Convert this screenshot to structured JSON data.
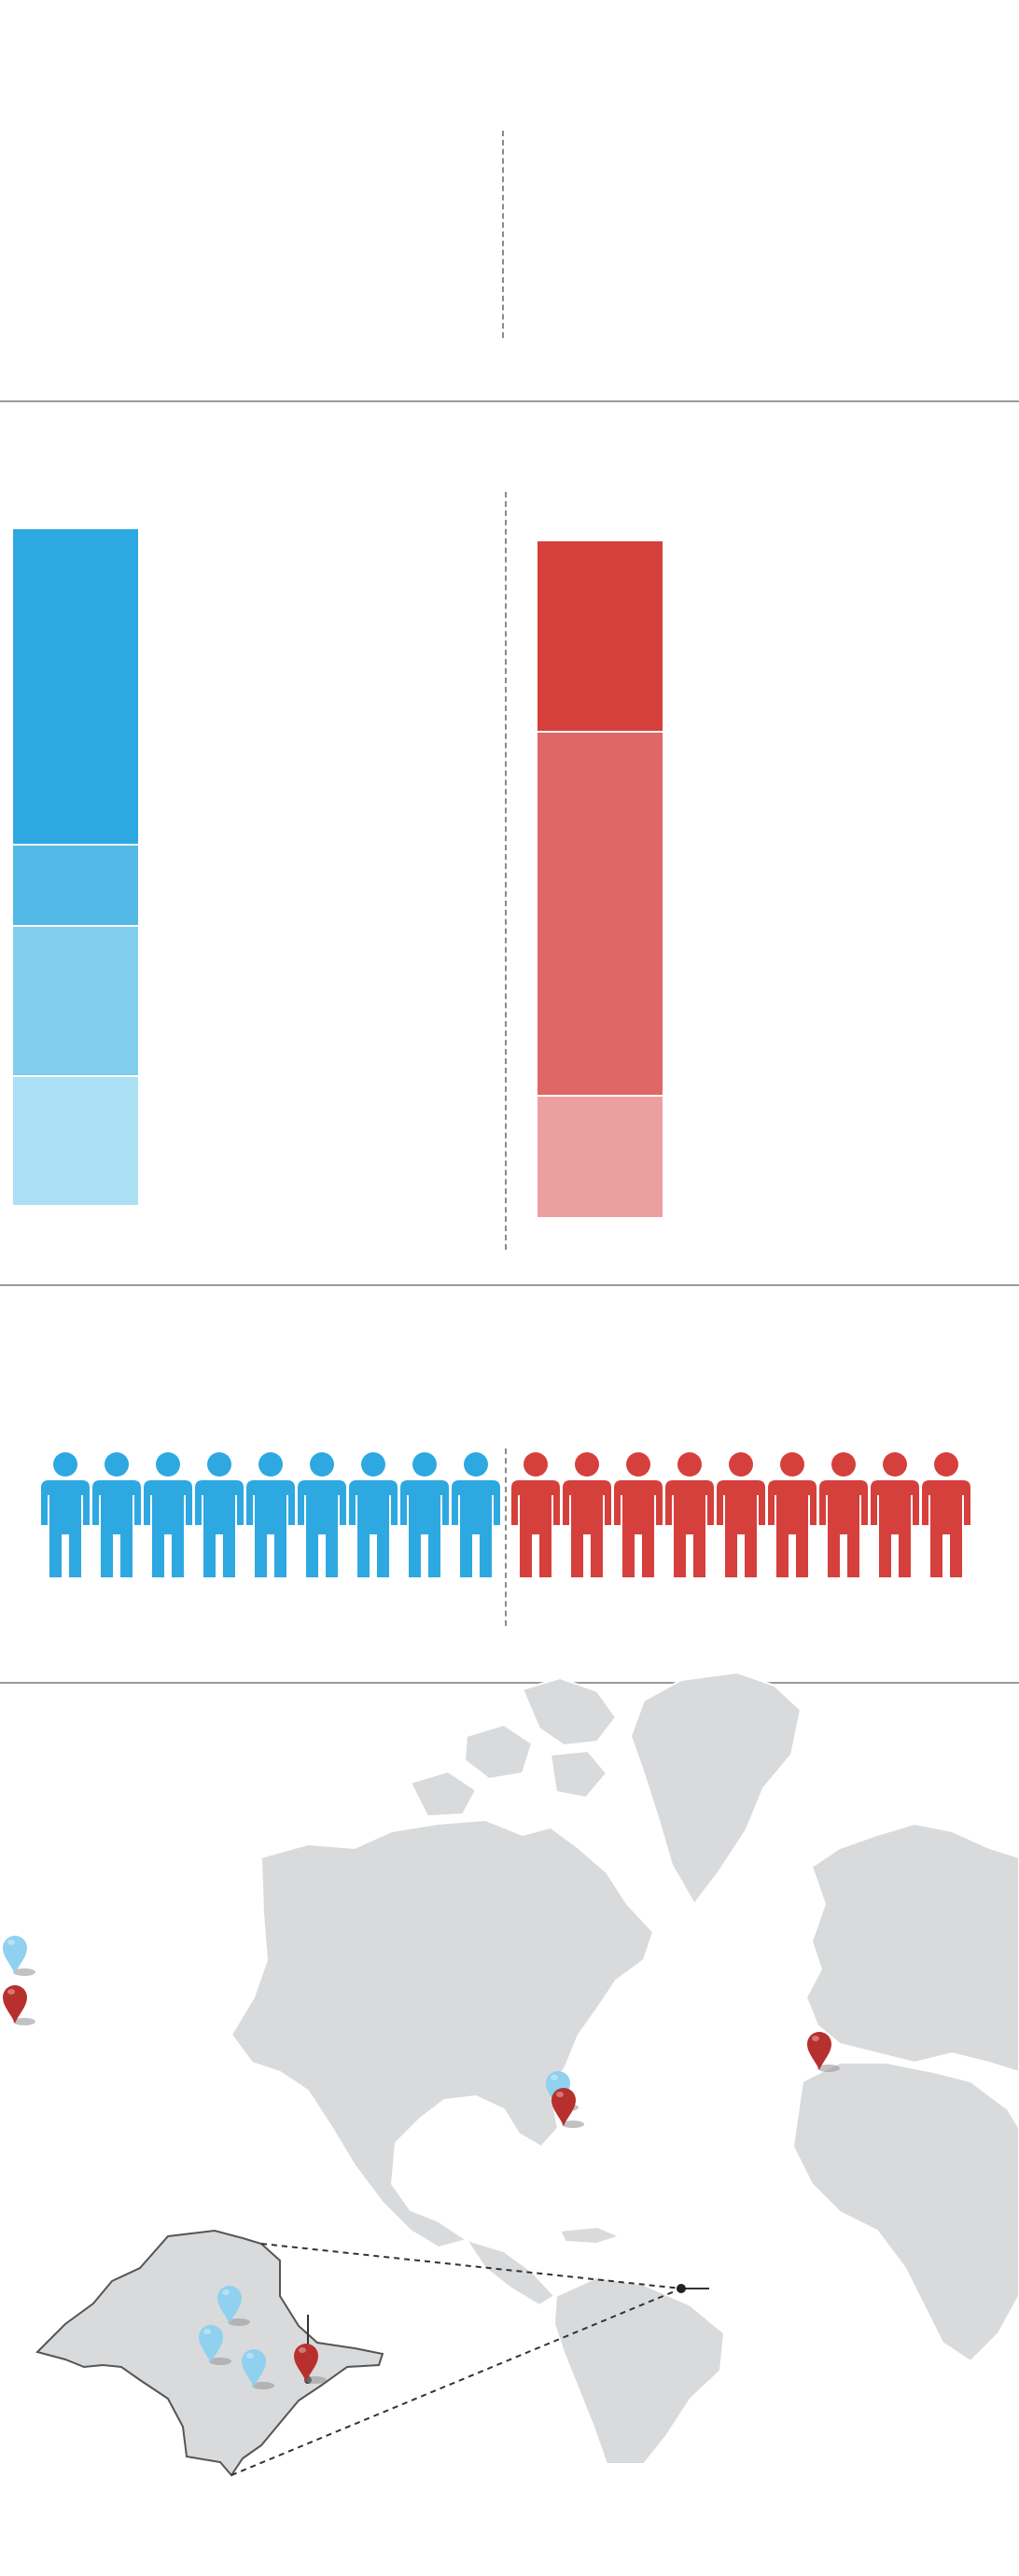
{
  "colors": {
    "blue": "#2ea8e1",
    "blue_mid": "#53b9e6",
    "blue_light": "#82cdee",
    "blue_pale": "#aadff4",
    "red": "#d6403c",
    "red_mid": "#df6766",
    "red_light": "#eba09f",
    "map_land": "#d9dadb",
    "divider": "#9a9a9a"
  },
  "stacks": {
    "left": [
      {
        "color": "#2ea8e1",
        "share": 0.466
      },
      {
        "color": "#53b9e6",
        "share": 0.12
      },
      {
        "color": "#82cdee",
        "share": 0.222
      },
      {
        "color": "#aadff4",
        "share": 0.192
      }
    ],
    "right": [
      {
        "color": "#d6403c",
        "share": 0.281
      },
      {
        "color": "#df6766",
        "share": 0.538
      },
      {
        "color": "#eba09f",
        "share": 0.181
      }
    ]
  },
  "people": {
    "left_count": 9,
    "right_count": 9,
    "left_color": "#2ea8e1",
    "right_color": "#d6403c",
    "icon": "person-icon"
  },
  "map": {
    "pins": [
      {
        "name": "pin-legend-blue",
        "color": "#8fd1ef",
        "icon": "map-pin-icon"
      },
      {
        "name": "pin-legend-red",
        "color": "#b8302d",
        "icon": "map-pin-icon"
      },
      {
        "name": "pin-florida-blue",
        "color": "#8fd1ef",
        "icon": "map-pin-icon"
      },
      {
        "name": "pin-florida-red",
        "color": "#b8302d",
        "icon": "map-pin-icon"
      },
      {
        "name": "pin-portugal-red",
        "color": "#b8302d",
        "icon": "map-pin-icon"
      },
      {
        "name": "pin-inset-blue-1",
        "color": "#8fd1ef",
        "icon": "map-pin-icon"
      },
      {
        "name": "pin-inset-blue-2",
        "color": "#8fd1ef",
        "icon": "map-pin-icon"
      },
      {
        "name": "pin-inset-blue-3",
        "color": "#8fd1ef",
        "icon": "map-pin-icon"
      },
      {
        "name": "pin-inset-red",
        "color": "#b8302d",
        "icon": "map-pin-icon"
      }
    ]
  }
}
